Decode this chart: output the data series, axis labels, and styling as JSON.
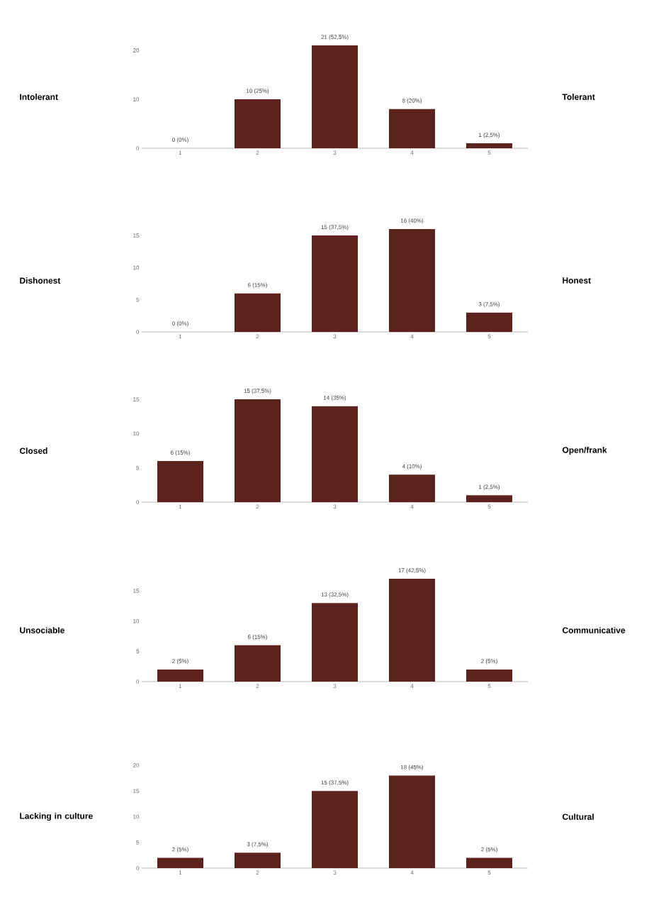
{
  "chart_data": [
    {
      "type": "bar",
      "categories": [
        "1",
        "2",
        "3",
        "4",
        "5"
      ],
      "values": [
        0,
        10,
        21,
        8,
        1
      ],
      "value_labels": [
        "0 (0%)",
        "10 (25%)",
        "21 (52,5%)",
        "8 (20%)",
        "1 (2,5%)"
      ],
      "color": "#5c221e",
      "ylim": [
        0,
        21
      ],
      "yticks": [
        0,
        10,
        20
      ],
      "annotations": [
        "Intolerant",
        "Tolerant"
      ]
    },
    {
      "type": "bar",
      "categories": [
        "1",
        "2",
        "3",
        "4",
        "5"
      ],
      "values": [
        0,
        6,
        15,
        16,
        3
      ],
      "value_labels": [
        "0 (0%)",
        "6 (15%)",
        "15 (37,5%)",
        "16 (40%)",
        "3 (7,5%)"
      ],
      "color": "#5c221e",
      "ylim": [
        0,
        16
      ],
      "yticks": [
        0,
        5,
        10,
        15
      ],
      "annotations": [
        "Dishonest",
        "Honest"
      ]
    },
    {
      "type": "bar",
      "categories": [
        "1",
        "2",
        "3",
        "4",
        "5"
      ],
      "values": [
        6,
        15,
        14,
        4,
        1
      ],
      "value_labels": [
        "6 (15%)",
        "15 (37,5%)",
        "14 (35%)",
        "4 (10%)",
        "1 (2,5%)"
      ],
      "color": "#5c221e",
      "ylim": [
        0,
        15
      ],
      "yticks": [
        0,
        5,
        10,
        15
      ],
      "annotations": [
        "Closed",
        "Open/frank"
      ]
    },
    {
      "type": "bar",
      "categories": [
        "1",
        "2",
        "3",
        "4",
        "5"
      ],
      "values": [
        2,
        6,
        13,
        17,
        2
      ],
      "value_labels": [
        "2 (5%)",
        "6 (15%)",
        "13 (32,5%)",
        "17 (42,5%)",
        "2 (5%)"
      ],
      "color": "#5c221e",
      "ylim": [
        0,
        17
      ],
      "yticks": [
        0,
        5,
        10,
        15
      ],
      "annotations": [
        "Unsociable",
        "Communicative"
      ]
    },
    {
      "type": "bar",
      "categories": [
        "1",
        "2",
        "3",
        "4",
        "5"
      ],
      "values": [
        2,
        3,
        15,
        18,
        2
      ],
      "value_labels": [
        "2 (5%)",
        "3 (7,5%)",
        "15 (37,5%)",
        "18 (45%)",
        "2 (5%)"
      ],
      "color": "#5c221e",
      "ylim": [
        0,
        20
      ],
      "yticks": [
        0,
        5,
        10,
        15,
        20
      ],
      "annotations": [
        "Lacking in culture",
        "Cultural"
      ]
    }
  ]
}
